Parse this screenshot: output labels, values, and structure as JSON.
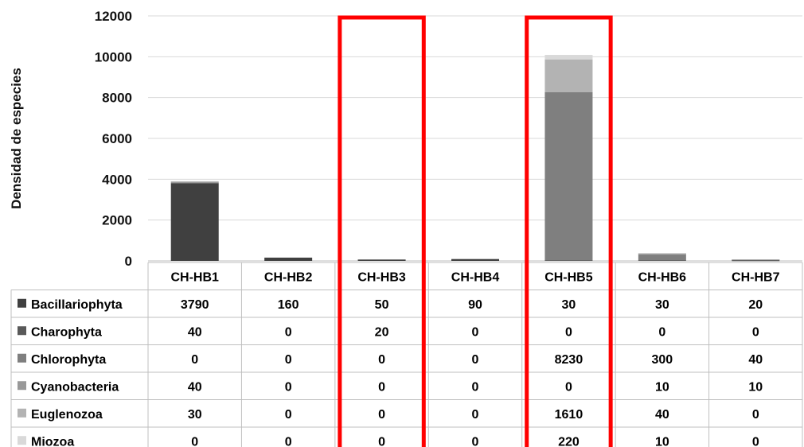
{
  "chart_data": {
    "type": "bar",
    "stacked": true,
    "ylabel": "Densidad de especies",
    "xlabel": "",
    "ylim": [
      0,
      12000
    ],
    "yticks": [
      0,
      2000,
      4000,
      6000,
      8000,
      10000,
      12000
    ],
    "grid": true,
    "legend_placement": "data-table-left",
    "categories": [
      "CH-HB1",
      "CH-HB2",
      "CH-HB3",
      "CH-HB4",
      "CH-HB5",
      "CH-HB6",
      "CH-HB7"
    ],
    "series": [
      {
        "name": "Bacillariophyta",
        "color": "#404040",
        "values": [
          3790,
          160,
          50,
          90,
          30,
          30,
          20
        ]
      },
      {
        "name": "Charophyta",
        "color": "#595959",
        "values": [
          40,
          0,
          20,
          0,
          0,
          0,
          0
        ]
      },
      {
        "name": "Chlorophyta",
        "color": "#7f7f7f",
        "values": [
          0,
          0,
          0,
          0,
          8230,
          300,
          40
        ]
      },
      {
        "name": "Cyanobacteria",
        "color": "#999999",
        "values": [
          40,
          0,
          0,
          0,
          0,
          10,
          10
        ]
      },
      {
        "name": "Euglenozoa",
        "color": "#b3b3b3",
        "values": [
          30,
          0,
          0,
          0,
          1610,
          40,
          0
        ]
      },
      {
        "name": "Miozoa",
        "color": "#d9d9d9",
        "values": [
          0,
          0,
          0,
          0,
          220,
          10,
          0
        ]
      }
    ],
    "highlighted_categories": [
      "CH-HB3",
      "CH-HB5"
    ],
    "highlight_color": "#ff0000"
  }
}
